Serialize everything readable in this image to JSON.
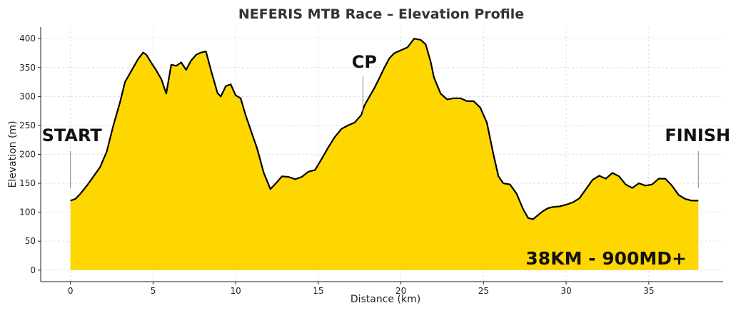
{
  "chart_data": {
    "type": "area",
    "title": "NEFERIS MTB Race – Elevation Profile",
    "xlabel": "Distance (km)",
    "ylabel": "Elevation (m)",
    "xlim": [
      -1.8,
      39.5
    ],
    "ylim": [
      -20,
      420
    ],
    "xticks": [
      0,
      5,
      10,
      15,
      20,
      25,
      30,
      35
    ],
    "yticks": [
      0,
      50,
      100,
      150,
      200,
      250,
      300,
      350,
      400
    ],
    "grid": true,
    "fill_color": "#FFD700",
    "line_color": "#000000",
    "series": [
      {
        "x": [
          0,
          0.3,
          0.6,
          1.0,
          1.4,
          1.8,
          2.2,
          2.6,
          3.0,
          3.3,
          3.5,
          3.8,
          4.1,
          4.4,
          4.6,
          4.9,
          5.2,
          5.5,
          5.8,
          6.1,
          6.4,
          6.7,
          7.0,
          7.3,
          7.6,
          7.9,
          8.2,
          8.5,
          8.9,
          9.1,
          9.4,
          9.7,
          10.0,
          10.3,
          10.6,
          10.9,
          11.3,
          11.7,
          12.1,
          12.5,
          12.8,
          13.2,
          13.6,
          14.0,
          14.4,
          14.8,
          15.2,
          15.6,
          16.0,
          16.4,
          16.8,
          17.2,
          17.6,
          17.8,
          18.1,
          18.4,
          18.7,
          19.0,
          19.3,
          19.6,
          20.0,
          20.4,
          20.8,
          21.2,
          21.5,
          21.8,
          22.0,
          22.4,
          22.8,
          23.2,
          23.6,
          24.0,
          24.4,
          24.8,
          25.2,
          25.6,
          25.9,
          26.2,
          26.6,
          27.0,
          27.4,
          27.7,
          28.0,
          28.3,
          28.6,
          28.9,
          29.2,
          29.6,
          30.0,
          30.4,
          30.8,
          31.2,
          31.6,
          32.0,
          32.4,
          32.8,
          33.2,
          33.6,
          34.0,
          34.4,
          34.8,
          35.2,
          35.6,
          36.0,
          36.4,
          36.8,
          37.2,
          37.6,
          38.0
        ],
        "y": [
          120,
          123,
          132,
          146,
          162,
          178,
          205,
          250,
          290,
          325,
          335,
          350,
          365,
          376,
          372,
          358,
          345,
          330,
          305,
          355,
          353,
          359,
          346,
          362,
          372,
          376,
          378,
          346,
          306,
          300,
          318,
          321,
          302,
          297,
          268,
          243,
          210,
          168,
          140,
          152,
          162,
          161,
          157,
          161,
          170,
          173,
          192,
          212,
          230,
          244,
          250,
          255,
          268,
          285,
          300,
          315,
          332,
          350,
          366,
          375,
          380,
          385,
          400,
          398,
          390,
          360,
          333,
          305,
          295,
          297,
          297,
          292,
          292,
          281,
          255,
          200,
          162,
          150,
          148,
          132,
          105,
          90,
          88,
          95,
          102,
          107,
          109,
          110,
          113,
          117,
          124,
          140,
          156,
          163,
          158,
          168,
          162,
          148,
          142,
          150,
          146,
          148,
          158,
          158,
          146,
          130,
          123,
          120,
          120
        ]
      }
    ],
    "annotations": [
      {
        "label": "START",
        "x": 0
      },
      {
        "label": "CP",
        "x": 17.7
      },
      {
        "label": "FINISH",
        "x": 38.0
      }
    ],
    "badge": "38KM - 900MD+"
  }
}
